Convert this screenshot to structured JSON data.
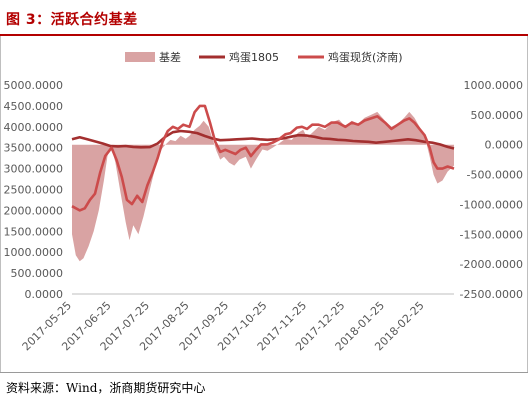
{
  "header": {
    "title": "图 3：活跃合约基差"
  },
  "footer": {
    "source": "资料来源：Wind，浙商期货研究中心"
  },
  "chart_data": {
    "type": "line",
    "xlabel": "",
    "ylabel": "",
    "x_tick_labels": [
      "2017-05-25",
      "2017-06-25",
      "2017-07-25",
      "2017-08-25",
      "2017-09-25",
      "2017-10-25",
      "2017-11-25",
      "2017-12-25",
      "2018-01-25",
      "2018-02-25"
    ],
    "xlim": [
      "2017-05-25",
      "2018-03-20"
    ],
    "y_left": {
      "ylim": [
        0,
        5000
      ],
      "ticks": [
        "5000.0000",
        "4500.0000",
        "4000.0000",
        "3500.0000",
        "3000.0000",
        "2500.0000",
        "2000.0000",
        "1500.0000",
        "1000.0000",
        "500.0000",
        "0.0000"
      ]
    },
    "y_right": {
      "ylim": [
        -2500,
        1000
      ],
      "ticks": [
        "1000.0000",
        "500.0000",
        "0.0000",
        "-500.0000",
        "-1000.0000",
        "-1500.0000",
        "-2000.0000",
        "-2500.0000"
      ]
    },
    "legend": "top",
    "grid": false,
    "colors": {
      "basis": "#d9a3a3",
      "futures": "#a32f2f",
      "spot": "#cc4b4b"
    },
    "series": [
      {
        "name": "基差",
        "kind": "area",
        "axis": "right",
        "points": [
          [
            "2017-05-25",
            -1500
          ],
          [
            "2017-05-28",
            -1850
          ],
          [
            "2017-05-31",
            -1950
          ],
          [
            "2017-06-03",
            -1900
          ],
          [
            "2017-06-07",
            -1700
          ],
          [
            "2017-06-11",
            -1450
          ],
          [
            "2017-06-15",
            -1100
          ],
          [
            "2017-06-19",
            -600
          ],
          [
            "2017-06-22",
            -150
          ],
          [
            "2017-06-25",
            -50
          ],
          [
            "2017-06-28",
            -300
          ],
          [
            "2017-07-02",
            -800
          ],
          [
            "2017-07-06",
            -1300
          ],
          [
            "2017-07-09",
            -1600
          ],
          [
            "2017-07-12",
            -1350
          ],
          [
            "2017-07-16",
            -1500
          ],
          [
            "2017-07-20",
            -1200
          ],
          [
            "2017-07-25",
            -750
          ],
          [
            "2017-07-29",
            -400
          ],
          [
            "2017-08-02",
            -100
          ],
          [
            "2017-08-06",
            0
          ],
          [
            "2017-08-10",
            80
          ],
          [
            "2017-08-14",
            60
          ],
          [
            "2017-08-18",
            150
          ],
          [
            "2017-08-22",
            100
          ],
          [
            "2017-08-25",
            150
          ],
          [
            "2017-08-29",
            250
          ],
          [
            "2017-09-02",
            320
          ],
          [
            "2017-09-05",
            400
          ],
          [
            "2017-09-09",
            300
          ],
          [
            "2017-09-12",
            100
          ],
          [
            "2017-09-15",
            -100
          ],
          [
            "2017-09-18",
            -250
          ],
          [
            "2017-09-21",
            -200
          ],
          [
            "2017-09-25",
            -300
          ],
          [
            "2017-09-29",
            -350
          ],
          [
            "2017-10-03",
            -250
          ],
          [
            "2017-10-08",
            -200
          ],
          [
            "2017-10-12",
            -400
          ],
          [
            "2017-10-16",
            -250
          ],
          [
            "2017-10-21",
            -80
          ],
          [
            "2017-10-25",
            -100
          ],
          [
            "2017-10-29",
            -50
          ],
          [
            "2017-11-03",
            20
          ],
          [
            "2017-11-08",
            100
          ],
          [
            "2017-11-13",
            80
          ],
          [
            "2017-11-18",
            200
          ],
          [
            "2017-11-22",
            250
          ],
          [
            "2017-11-25",
            120
          ],
          [
            "2017-11-29",
            200
          ],
          [
            "2017-12-04",
            300
          ],
          [
            "2017-12-09",
            250
          ],
          [
            "2017-12-15",
            380
          ],
          [
            "2017-12-20",
            420
          ],
          [
            "2017-12-25",
            300
          ],
          [
            "2017-12-30",
            400
          ],
          [
            "2018-01-04",
            350
          ],
          [
            "2018-01-09",
            450
          ],
          [
            "2018-01-14",
            500
          ],
          [
            "2018-01-19",
            550
          ],
          [
            "2018-01-25",
            400
          ],
          [
            "2018-01-30",
            300
          ],
          [
            "2018-02-04",
            350
          ],
          [
            "2018-02-09",
            450
          ],
          [
            "2018-02-13",
            550
          ],
          [
            "2018-02-17",
            450
          ],
          [
            "2018-02-21",
            300
          ],
          [
            "2018-02-25",
            150
          ],
          [
            "2018-03-01",
            -200
          ],
          [
            "2018-03-04",
            -500
          ],
          [
            "2018-03-07",
            -650
          ],
          [
            "2018-03-11",
            -600
          ],
          [
            "2018-03-15",
            -450
          ],
          [
            "2018-03-20",
            -350
          ]
        ]
      },
      {
        "name": "鸡蛋1805",
        "kind": "line",
        "axis": "left",
        "points": [
          [
            "2017-05-25",
            3700
          ],
          [
            "2017-05-31",
            3750
          ],
          [
            "2017-06-06",
            3700
          ],
          [
            "2017-06-12",
            3650
          ],
          [
            "2017-06-18",
            3600
          ],
          [
            "2017-06-24",
            3540
          ],
          [
            "2017-06-30",
            3530
          ],
          [
            "2017-07-06",
            3540
          ],
          [
            "2017-07-12",
            3520
          ],
          [
            "2017-07-18",
            3510
          ],
          [
            "2017-07-25",
            3515
          ],
          [
            "2017-07-31",
            3600
          ],
          [
            "2017-08-06",
            3760
          ],
          [
            "2017-08-12",
            3870
          ],
          [
            "2017-08-18",
            3900
          ],
          [
            "2017-08-25",
            3880
          ],
          [
            "2017-08-31",
            3850
          ],
          [
            "2017-09-06",
            3780
          ],
          [
            "2017-09-12",
            3720
          ],
          [
            "2017-09-18",
            3680
          ],
          [
            "2017-09-25",
            3690
          ],
          [
            "2017-10-01",
            3700
          ],
          [
            "2017-10-07",
            3710
          ],
          [
            "2017-10-13",
            3720
          ],
          [
            "2017-10-19",
            3700
          ],
          [
            "2017-10-25",
            3690
          ],
          [
            "2017-10-31",
            3700
          ],
          [
            "2017-11-06",
            3720
          ],
          [
            "2017-11-12",
            3760
          ],
          [
            "2017-11-18",
            3800
          ],
          [
            "2017-11-25",
            3790
          ],
          [
            "2017-12-01",
            3760
          ],
          [
            "2017-12-07",
            3720
          ],
          [
            "2017-12-13",
            3710
          ],
          [
            "2017-12-19",
            3690
          ],
          [
            "2017-12-25",
            3680
          ],
          [
            "2017-12-31",
            3660
          ],
          [
            "2018-01-06",
            3650
          ],
          [
            "2018-01-12",
            3640
          ],
          [
            "2018-01-18",
            3620
          ],
          [
            "2018-01-25",
            3640
          ],
          [
            "2018-01-31",
            3660
          ],
          [
            "2018-02-06",
            3680
          ],
          [
            "2018-02-12",
            3700
          ],
          [
            "2018-02-18",
            3680
          ],
          [
            "2018-02-25",
            3640
          ],
          [
            "2018-03-03",
            3620
          ],
          [
            "2018-03-09",
            3580
          ],
          [
            "2018-03-15",
            3520
          ],
          [
            "2018-03-20",
            3480
          ]
        ]
      },
      {
        "name": "鸡蛋现货(济南)",
        "kind": "line",
        "axis": "left",
        "points": [
          [
            "2017-05-25",
            2100
          ],
          [
            "2017-05-31",
            2000
          ],
          [
            "2017-06-04",
            2050
          ],
          [
            "2017-06-08",
            2250
          ],
          [
            "2017-06-12",
            2400
          ],
          [
            "2017-06-16",
            2900
          ],
          [
            "2017-06-20",
            3300
          ],
          [
            "2017-06-25",
            3500
          ],
          [
            "2017-06-29",
            3200
          ],
          [
            "2017-07-03",
            2800
          ],
          [
            "2017-07-07",
            2250
          ],
          [
            "2017-07-11",
            2150
          ],
          [
            "2017-07-15",
            2350
          ],
          [
            "2017-07-19",
            2200
          ],
          [
            "2017-07-23",
            2600
          ],
          [
            "2017-07-27",
            2900
          ],
          [
            "2017-07-31",
            3250
          ],
          [
            "2017-08-04",
            3650
          ],
          [
            "2017-08-08",
            3900
          ],
          [
            "2017-08-12",
            4000
          ],
          [
            "2017-08-16",
            3950
          ],
          [
            "2017-08-20",
            4050
          ],
          [
            "2017-08-25",
            4000
          ],
          [
            "2017-08-29",
            4350
          ],
          [
            "2017-09-02",
            4500
          ],
          [
            "2017-09-06",
            4500
          ],
          [
            "2017-09-10",
            4100
          ],
          [
            "2017-09-14",
            3650
          ],
          [
            "2017-09-18",
            3400
          ],
          [
            "2017-09-22",
            3450
          ],
          [
            "2017-09-26",
            3400
          ],
          [
            "2017-09-30",
            3350
          ],
          [
            "2017-10-04",
            3450
          ],
          [
            "2017-10-08",
            3500
          ],
          [
            "2017-10-12",
            3300
          ],
          [
            "2017-10-16",
            3450
          ],
          [
            "2017-10-20",
            3580
          ],
          [
            "2017-10-25",
            3580
          ],
          [
            "2017-10-29",
            3620
          ],
          [
            "2017-11-03",
            3700
          ],
          [
            "2017-11-08",
            3820
          ],
          [
            "2017-11-12",
            3850
          ],
          [
            "2017-11-17",
            3980
          ],
          [
            "2017-11-21",
            4000
          ],
          [
            "2017-11-25",
            3950
          ],
          [
            "2017-11-29",
            4050
          ],
          [
            "2017-12-04",
            4050
          ],
          [
            "2017-12-09",
            4000
          ],
          [
            "2017-12-14",
            4100
          ],
          [
            "2017-12-19",
            4100
          ],
          [
            "2017-12-25",
            4000
          ],
          [
            "2017-12-30",
            4100
          ],
          [
            "2018-01-04",
            4050
          ],
          [
            "2018-01-09",
            4150
          ],
          [
            "2018-01-14",
            4200
          ],
          [
            "2018-01-19",
            4250
          ],
          [
            "2018-01-25",
            4100
          ],
          [
            "2018-01-30",
            3950
          ],
          [
            "2018-02-04",
            4050
          ],
          [
            "2018-02-09",
            4150
          ],
          [
            "2018-02-13",
            4200
          ],
          [
            "2018-02-17",
            4100
          ],
          [
            "2018-02-21",
            3950
          ],
          [
            "2018-02-25",
            3800
          ],
          [
            "2018-03-01",
            3500
          ],
          [
            "2018-03-04",
            3150
          ],
          [
            "2018-03-07",
            3000
          ],
          [
            "2018-03-11",
            3000
          ],
          [
            "2018-03-15",
            3050
          ],
          [
            "2018-03-20",
            3000
          ]
        ]
      }
    ]
  }
}
